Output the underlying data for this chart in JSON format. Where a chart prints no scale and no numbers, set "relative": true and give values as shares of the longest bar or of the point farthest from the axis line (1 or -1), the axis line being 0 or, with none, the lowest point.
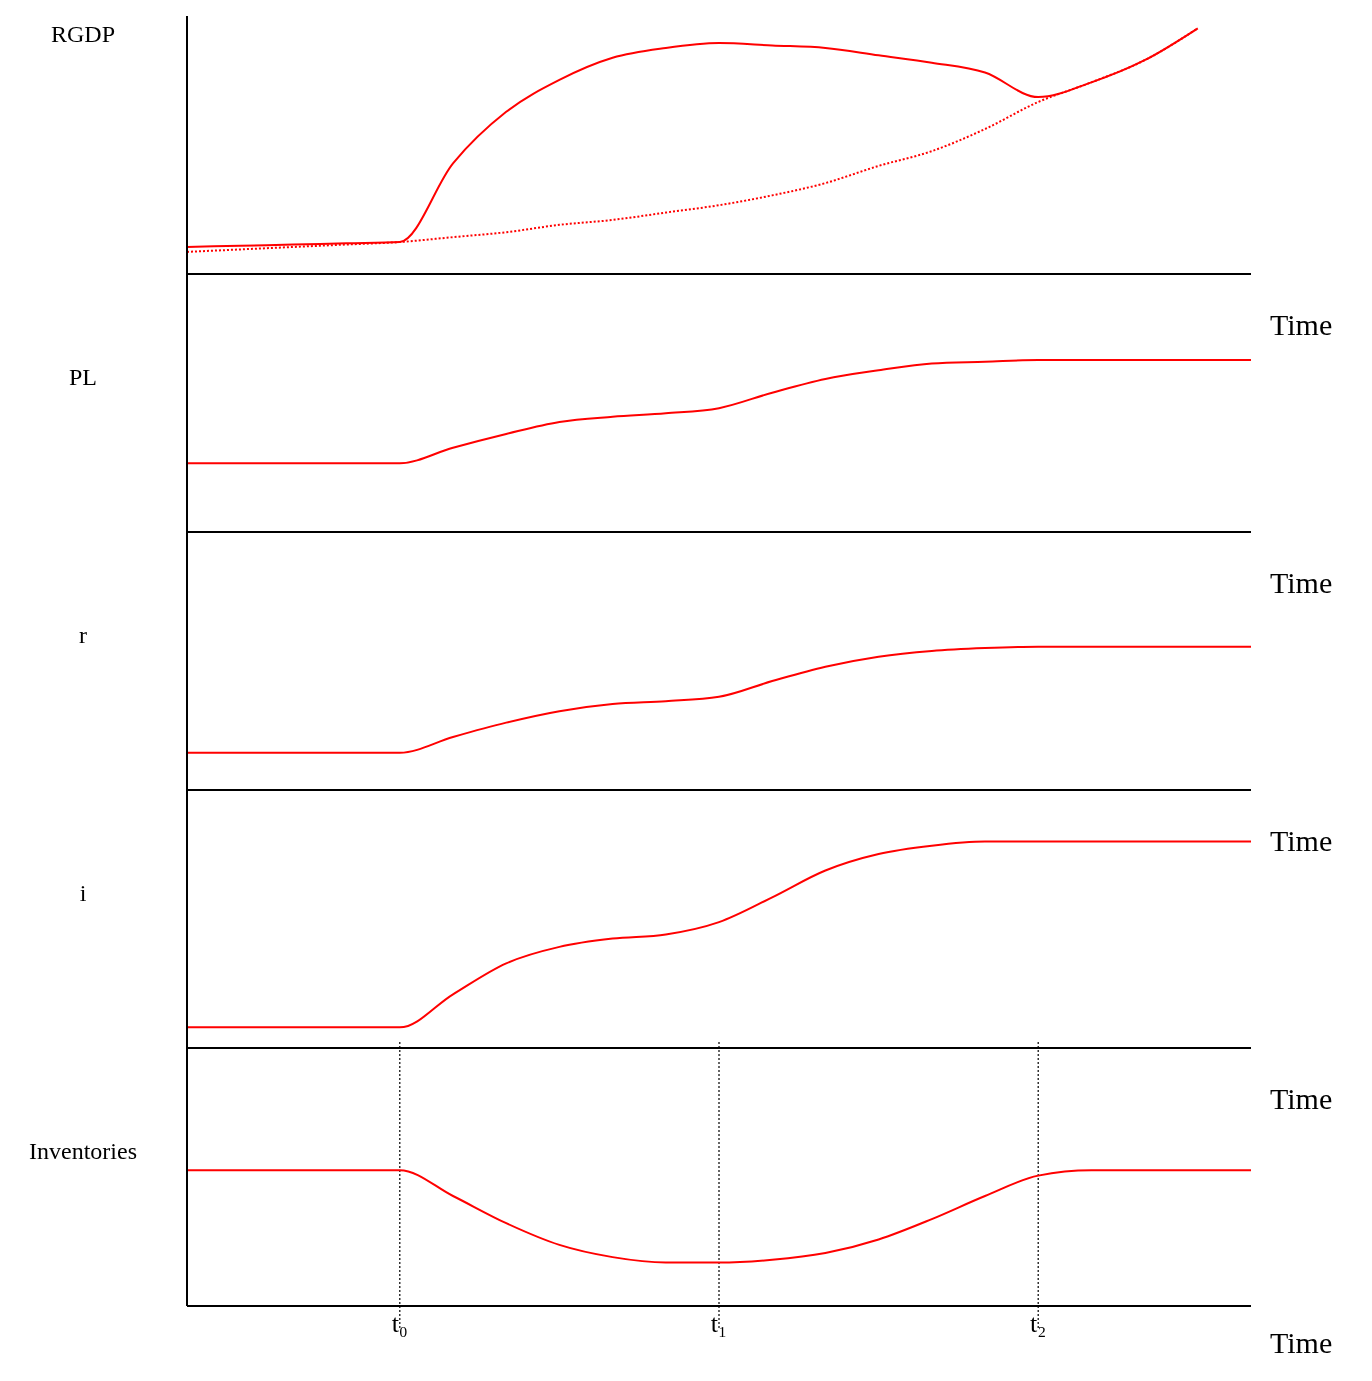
{
  "chart_data": [
    {
      "type": "line",
      "ylabel": "RGDP",
      "xlabel": "Time",
      "relative": true,
      "tick_labels": false,
      "categories": [
        null,
        null,
        null,
        null,
        null,
        null,
        null,
        null,
        null,
        null,
        null,
        null,
        null,
        null,
        null,
        null,
        null,
        null,
        null,
        null,
        null
      ],
      "series": [
        {
          "color": "#ff0000",
          "line_style": "solid",
          "values": [
            0.11,
            0.115,
            0.12,
            0.125,
            0.13,
            0.45,
            0.66,
            0.79,
            0.88,
            0.92,
            0.94,
            0.93,
            0.92,
            0.89,
            0.86,
            0.82,
            0.72,
            0.78,
            0.87,
            1,
            null
          ]
        },
        {
          "color": "#ff0000",
          "line_style": "dotted",
          "values": [
            0.09,
            0.1,
            0.11,
            0.12,
            0.13,
            0.15,
            0.17,
            0.2,
            0.22,
            0.25,
            0.28,
            0.32,
            0.37,
            0.44,
            0.5,
            0.59,
            0.7,
            0.78,
            0.87,
            1,
            null
          ]
        }
      ]
    },
    {
      "type": "line",
      "ylabel": "PL",
      "xlabel": "Time",
      "relative": true,
      "tick_labels": false,
      "categories": [
        null,
        null,
        null,
        null,
        null,
        null,
        null,
        null,
        null,
        null,
        null,
        null,
        null,
        null,
        null,
        null,
        null,
        null,
        null,
        null,
        null
      ],
      "series": [
        {
          "color": "#ff0000",
          "line_style": "solid",
          "values": [
            0.4,
            0.4,
            0.4,
            0.4,
            0.4,
            0.49,
            0.57,
            0.64,
            0.67,
            0.69,
            0.72,
            0.81,
            0.89,
            0.94,
            0.98,
            0.99,
            1,
            1,
            1,
            1,
            1
          ]
        }
      ]
    },
    {
      "type": "line",
      "ylabel": "r",
      "xlabel": "Time",
      "relative": true,
      "tick_labels": false,
      "categories": [
        null,
        null,
        null,
        null,
        null,
        null,
        null,
        null,
        null,
        null,
        null,
        null,
        null,
        null,
        null,
        null,
        null,
        null,
        null,
        null,
        null
      ],
      "series": [
        {
          "color": "#ff0000",
          "line_style": "solid",
          "values": [
            0.26,
            0.26,
            0.26,
            0.26,
            0.26,
            0.37,
            0.47,
            0.55,
            0.6,
            0.62,
            0.65,
            0.76,
            0.86,
            0.93,
            0.97,
            0.99,
            1,
            1,
            1,
            1,
            1
          ]
        }
      ]
    },
    {
      "type": "line",
      "ylabel": "i",
      "xlabel": "Time",
      "relative": true,
      "tick_labels": false,
      "categories": [
        null,
        null,
        null,
        null,
        null,
        null,
        null,
        null,
        null,
        null,
        null,
        null,
        null,
        null,
        null,
        null,
        null,
        null,
        null,
        null,
        null
      ],
      "series": [
        {
          "color": "#ff0000",
          "line_style": "solid",
          "values": [
            0.1,
            0.1,
            0.1,
            0.1,
            0.1,
            0.26,
            0.41,
            0.49,
            0.53,
            0.55,
            0.61,
            0.73,
            0.86,
            0.94,
            0.98,
            1,
            1,
            1,
            1,
            1,
            1
          ]
        }
      ]
    },
    {
      "type": "line",
      "ylabel": "Inventories",
      "xlabel": "Time",
      "relative": true,
      "tick_labels": "x",
      "categories": [
        null,
        null,
        null,
        null,
        "t₀",
        null,
        null,
        null,
        null,
        null,
        "t₁",
        null,
        null,
        null,
        null,
        null,
        "t₂",
        null,
        null,
        null,
        null
      ],
      "series": [
        {
          "color": "#ff0000",
          "line_style": "solid",
          "values": [
            1,
            1,
            1,
            1,
            1,
            0.81,
            0.61,
            0.45,
            0.36,
            0.32,
            0.32,
            0.34,
            0.39,
            0.49,
            0.64,
            0.81,
            0.96,
            1,
            1,
            1,
            1
          ]
        }
      ],
      "ref_lines": [
        {
          "axis": "x",
          "value": "t₀",
          "color": "#000000",
          "line_style": "dotted"
        },
        {
          "axis": "x",
          "value": "t₁",
          "color": "#000000",
          "line_style": "dotted"
        },
        {
          "axis": "x",
          "value": "t₂",
          "color": "#000000",
          "line_style": "dotted"
        }
      ]
    }
  ]
}
